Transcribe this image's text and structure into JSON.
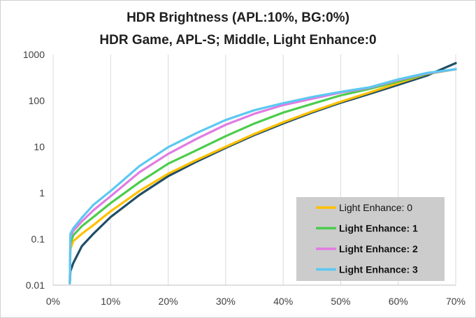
{
  "chart_data": {
    "type": "line",
    "title": "HDR Brightness (APL:10%, BG:0%)",
    "subtitle": "HDR Game, APL-S; Middle, Light Enhance:0",
    "xlabel": "",
    "ylabel": "",
    "x_scale": "linear",
    "y_scale": "log",
    "xlim": [
      0,
      70
    ],
    "ylim": [
      0.01,
      1000
    ],
    "x_ticks": [
      0,
      10,
      20,
      30,
      40,
      50,
      60,
      70
    ],
    "x_tick_labels": [
      "0%",
      "10%",
      "20%",
      "30%",
      "40%",
      "50%",
      "60%",
      "70%"
    ],
    "y_ticks": [
      0.01,
      0.1,
      1,
      10,
      100,
      1000
    ],
    "y_tick_labels": [
      "0.01",
      "0.1",
      "1",
      "10",
      "100",
      "1000"
    ],
    "grid": "vertical",
    "legend_position": "bottom-right",
    "reference": {
      "color": "#1f4e67",
      "x": [
        2.9,
        3.0,
        3.5,
        5,
        7,
        10,
        15,
        20,
        25,
        30,
        35,
        40,
        45,
        50,
        55,
        60,
        65,
        70
      ],
      "values": [
        0.011,
        0.02,
        0.03,
        0.07,
        0.13,
        0.3,
        0.9,
        2.3,
        4.8,
        9.5,
        18,
        32,
        55,
        90,
        140,
        220,
        350,
        650
      ]
    },
    "series": [
      {
        "name": "Light Enhance: 0",
        "color": "#ffc000",
        "bold": false,
        "x": [
          2.9,
          3.0,
          3.5,
          5,
          7,
          10,
          15,
          20,
          25,
          30,
          35,
          40,
          45,
          50,
          55,
          60,
          65,
          70
        ],
        "values": [
          0.011,
          0.06,
          0.09,
          0.13,
          0.2,
          0.4,
          1.1,
          2.6,
          5.2,
          10,
          19,
          34,
          58,
          95,
          150,
          240,
          380,
          480
        ]
      },
      {
        "name": "Light Enhance: 1",
        "color": "#4ccc4c",
        "bold": true,
        "x": [
          2.9,
          3.0,
          3.5,
          5,
          7,
          10,
          15,
          20,
          25,
          30,
          35,
          40,
          45,
          50,
          55,
          60,
          65,
          70
        ],
        "values": [
          0.011,
          0.08,
          0.12,
          0.19,
          0.3,
          0.6,
          1.7,
          4.3,
          8.5,
          17,
          32,
          55,
          85,
          130,
          180,
          260,
          380,
          480
        ]
      },
      {
        "name": "Light Enhance: 2",
        "color": "#e17be1",
        "bold": true,
        "x": [
          2.9,
          3.0,
          3.5,
          5,
          7,
          10,
          15,
          20,
          25,
          30,
          35,
          40,
          45,
          50,
          55,
          60,
          65,
          70
        ],
        "values": [
          0.011,
          0.11,
          0.15,
          0.24,
          0.42,
          0.85,
          2.8,
          7,
          15,
          30,
          52,
          80,
          110,
          150,
          190,
          280,
          390,
          480
        ]
      },
      {
        "name": "Light Enhance: 3",
        "color": "#5bc8f2",
        "bold": true,
        "x": [
          2.9,
          3.0,
          3.5,
          5,
          7,
          10,
          15,
          20,
          25,
          30,
          35,
          40,
          45,
          50,
          55,
          60,
          65,
          70
        ],
        "values": [
          0.011,
          0.13,
          0.17,
          0.29,
          0.55,
          1.1,
          3.8,
          9.8,
          20,
          38,
          62,
          88,
          120,
          155,
          195,
          290,
          400,
          480
        ]
      }
    ]
  }
}
